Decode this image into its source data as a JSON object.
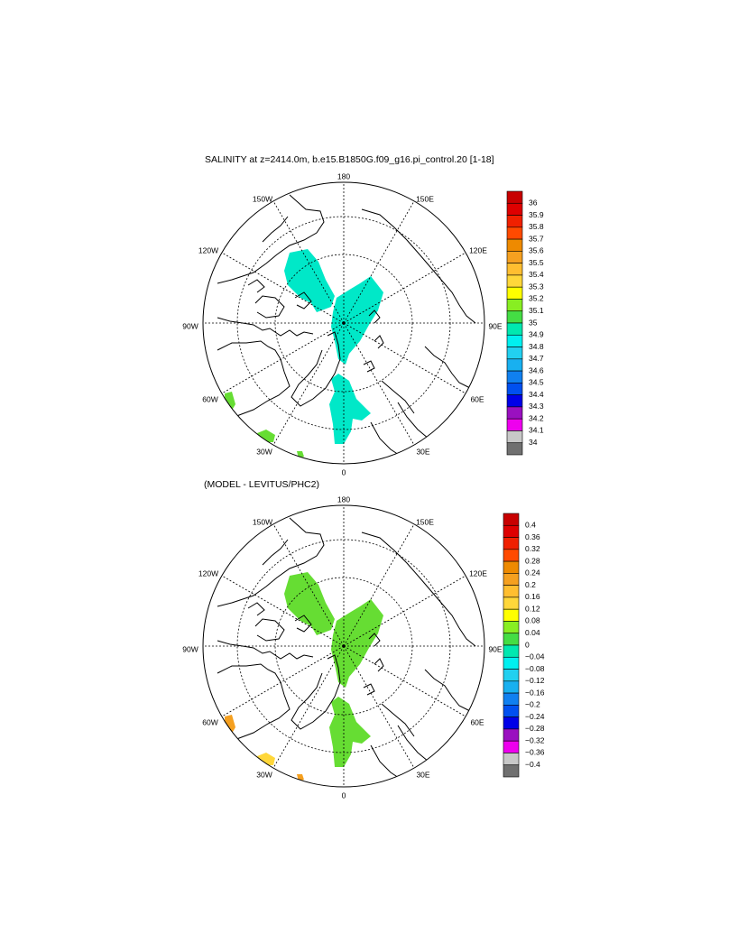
{
  "panels": [
    {
      "title": "SALINITY at z=2414.0m, b.e15.B1850G.f09_g16.pi_control.20 [1-18]",
      "lon_labels": [
        "180",
        "150E",
        "120E",
        "90E",
        "60E",
        "30E",
        "0",
        "30W",
        "60W",
        "90W",
        "120W",
        "150W"
      ],
      "colorbar": {
        "labels": [
          "36",
          "35.9",
          "35.8",
          "35.7",
          "35.6",
          "35.5",
          "35.4",
          "35.3",
          "35.2",
          "35.1",
          "35",
          "34.9",
          "34.8",
          "34.7",
          "34.6",
          "34.5",
          "34.4",
          "34.3",
          "34.2",
          "34.1",
          "34"
        ],
        "colors": [
          "#c80000",
          "#de0000",
          "#f02000",
          "#ff4a00",
          "#ee8a00",
          "#f5a020",
          "#ffbe30",
          "#ffd73a",
          "#ffff00",
          "#88ee22",
          "#44dd44",
          "#00e8b0",
          "#00f0f0",
          "#22d0f0",
          "#18b0f0",
          "#1080f0",
          "#0050f0",
          "#0000e8",
          "#9a10c0",
          "#ee00ee",
          "#c8c8c8",
          "#707070"
        ]
      },
      "fields": [
        {
          "name": "canada-basin-patch",
          "color": "#00e8c8"
        },
        {
          "name": "eurasian-basin-patch",
          "color": "#00e8c8"
        },
        {
          "name": "greenland-sea-patch",
          "color": "#00e8c8"
        },
        {
          "name": "labrador-patch",
          "color": "#66dd33"
        },
        {
          "name": "atlantic-patch",
          "color": "#66dd33"
        },
        {
          "name": "atlantic-small-patch",
          "color": "#66dd33"
        }
      ]
    },
    {
      "title": "(MODEL - LEVITUS/PHC2)",
      "lon_labels": [
        "180",
        "150E",
        "120E",
        "90E",
        "60E",
        "30E",
        "0",
        "30W",
        "60W",
        "90W",
        "120W",
        "150W"
      ],
      "colorbar": {
        "labels": [
          "0.4",
          "0.36",
          "0.32",
          "0.28",
          "0.24",
          "0.2",
          "0.16",
          "0.12",
          "0.08",
          "0.04",
          "0",
          "−0.04",
          "−0.08",
          "−0.12",
          "−0.16",
          "−0.2",
          "−0.24",
          "−0.28",
          "−0.32",
          "−0.36",
          "−0.4"
        ],
        "colors": [
          "#c80000",
          "#de0000",
          "#f02000",
          "#ff4a00",
          "#ee8a00",
          "#f5a020",
          "#ffbe30",
          "#ffd73a",
          "#ffff00",
          "#88ee22",
          "#44dd44",
          "#00e8b0",
          "#00f0f0",
          "#22d0f0",
          "#18b0f0",
          "#1080f0",
          "#0050f0",
          "#0000e8",
          "#9a10c0",
          "#ee00ee",
          "#c8c8c8",
          "#707070"
        ]
      },
      "fields": [
        {
          "name": "canada-basin-patch",
          "color": "#66dd33"
        },
        {
          "name": "eurasian-basin-patch",
          "color": "#66dd33"
        },
        {
          "name": "greenland-sea-patch",
          "color": "#66dd33"
        },
        {
          "name": "labrador-patch",
          "color": "#f5a020"
        },
        {
          "name": "atlantic-patch",
          "color": "#ffd73a"
        },
        {
          "name": "atlantic-small-patch",
          "color": "#f5a020"
        }
      ]
    }
  ]
}
